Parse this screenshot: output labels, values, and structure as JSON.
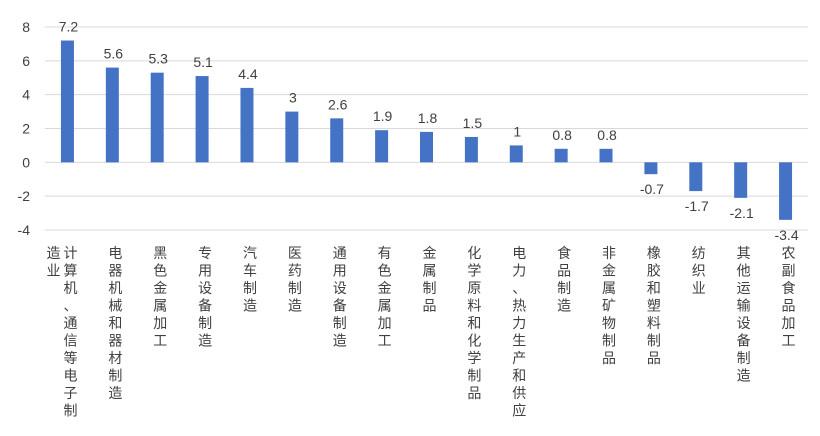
{
  "chart_data": {
    "type": "bar",
    "title": "",
    "xlabel": "",
    "ylabel": "",
    "ylim": [
      -4,
      8
    ],
    "yticks": [
      "-4",
      "-2",
      "0",
      "2",
      "4",
      "6",
      "8"
    ],
    "grid": true,
    "legend": "none",
    "bar_color": "#4472c4",
    "categories": [
      "计算机、通信等电子制造业",
      "电器机械和器材制造",
      "黑色金属加工",
      "专用设备制造",
      "汽车制造",
      "医药制造",
      "通用设备制造",
      "有色金属加工",
      "金属制品",
      "化学原料和化学制品",
      "电力、热力生产和供应",
      "食品制造",
      "非金属矿物制品",
      "橡胶和塑料制品",
      "纺织业",
      "其他运输设备制造",
      "农副食品加工"
    ],
    "values": [
      7.2,
      5.6,
      5.3,
      5.1,
      4.4,
      3,
      2.6,
      1.9,
      1.8,
      1.5,
      1,
      0.8,
      0.8,
      -0.7,
      -1.7,
      -2.1,
      -3.4
    ]
  }
}
